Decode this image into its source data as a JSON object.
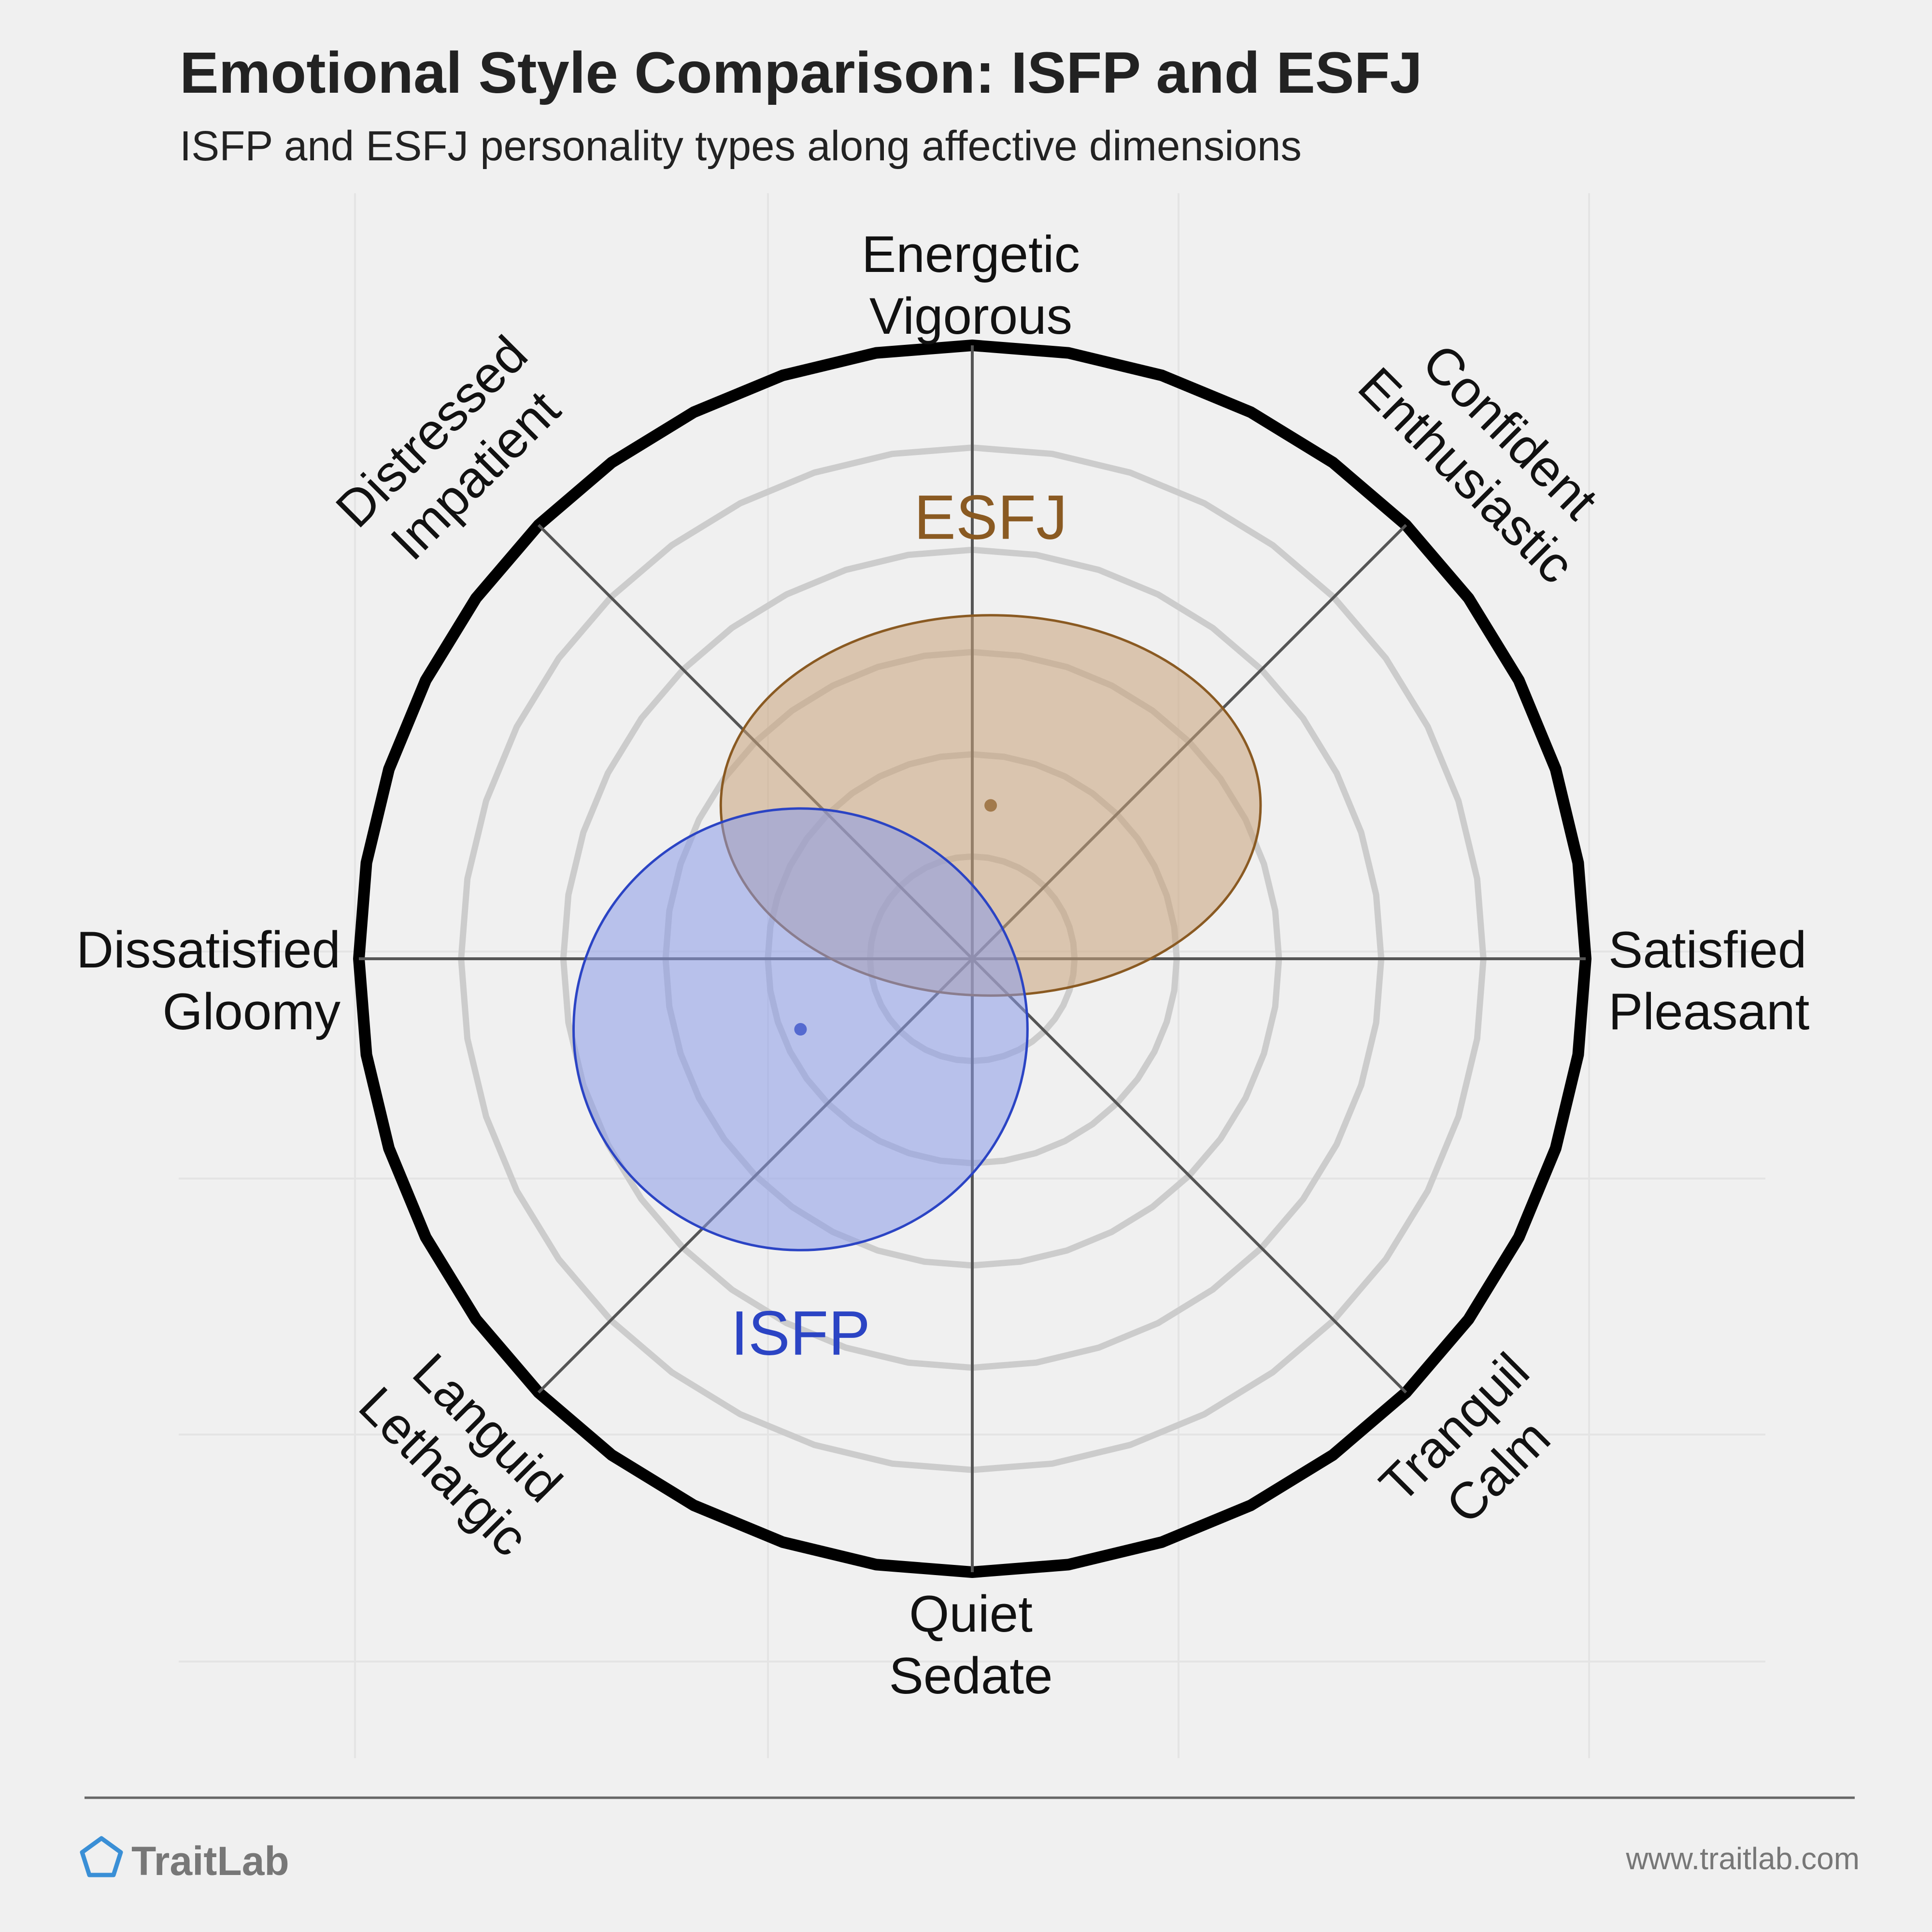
{
  "chart_data": {
    "type": "scatter",
    "title": "Emotional Style Comparison: ISFP and ESFJ",
    "subtitle": "ISFP and ESFJ personality types along affective dimensions",
    "axes": {
      "top": [
        "Energetic",
        "Vigorous"
      ],
      "top_right": [
        "Confident",
        "Enthusiastic"
      ],
      "right": [
        "Satisfied",
        "Pleasant"
      ],
      "bottom_right": [
        "Tranquil",
        "Calm"
      ],
      "bottom": [
        "Quiet",
        "Sedate"
      ],
      "bottom_left": [
        "Languid",
        "Lethargic"
      ],
      "left": [
        "Dissatisfied",
        "Gloomy"
      ],
      "top_left": [
        "Distressed",
        "Impatient"
      ]
    },
    "xlim": [
      -1,
      1
    ],
    "ylim": [
      -1,
      1
    ],
    "rings": 6,
    "series": [
      {
        "name": "ESFJ",
        "color": "#8a5a22",
        "fill": "#c8a27a",
        "x": 0.03,
        "y": 0.25,
        "spread_x": 0.44,
        "spread_y": 0.31
      },
      {
        "name": "ISFP",
        "color": "#2b44c4",
        "fill": "#8b9be8",
        "x": -0.28,
        "y": -0.115,
        "spread_x": 0.37,
        "spread_y": 0.36
      }
    ]
  },
  "footer": {
    "brand": "TraitLab",
    "url": "www.traitlab.com"
  },
  "colors": {
    "background": "#f0f0f0",
    "ring": "#cccccc",
    "outer_ring": "#000000",
    "axis_line": "#555555"
  }
}
